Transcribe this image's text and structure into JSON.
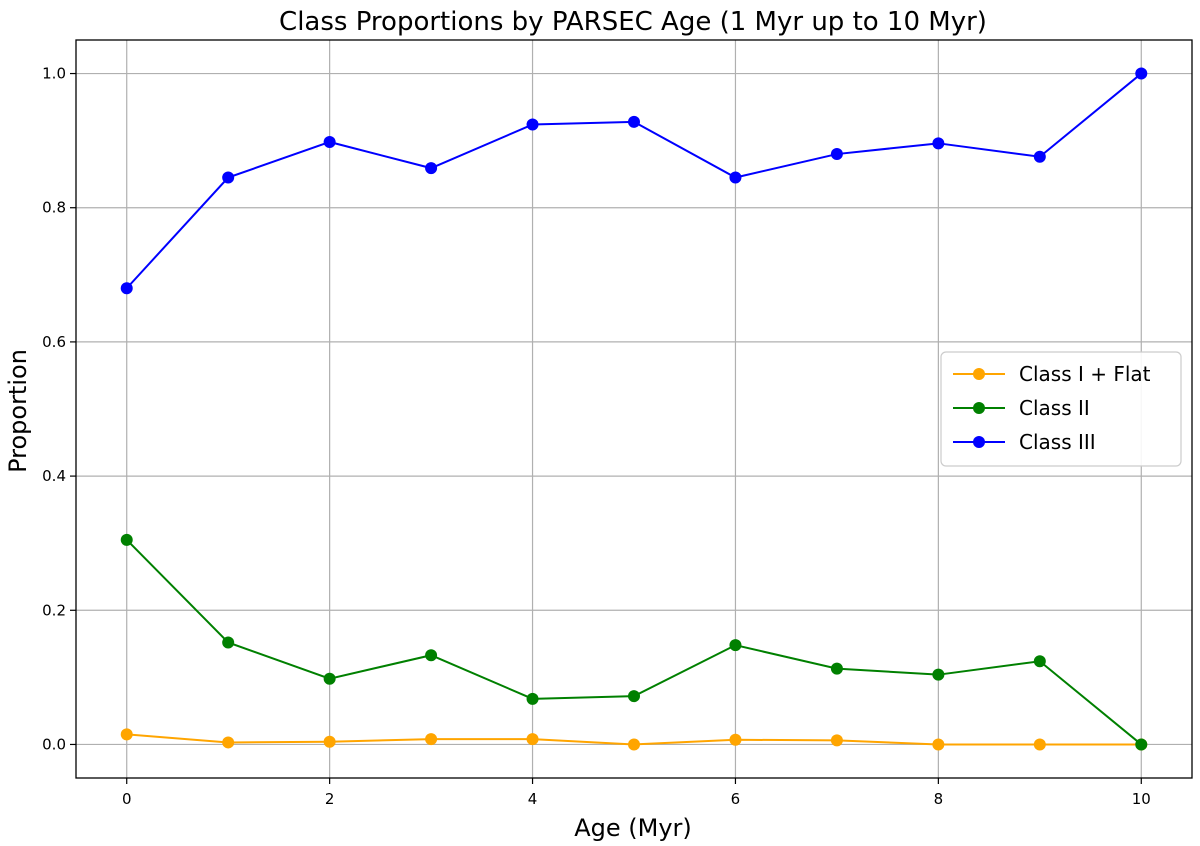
{
  "chart_data": {
    "type": "line",
    "title": "Class Proportions by PARSEC Age (1 Myr up to 10 Myr)",
    "xlabel": "Age (Myr)",
    "ylabel": "Proportion",
    "xlim": [
      -0.5,
      10.5
    ],
    "ylim": [
      -0.05,
      1.05
    ],
    "xticks": [
      0,
      2,
      4,
      6,
      8,
      10
    ],
    "xtick_labels": [
      "0",
      "2",
      "4",
      "6",
      "8",
      "10"
    ],
    "yticks": [
      0.0,
      0.2,
      0.4,
      0.6,
      0.8,
      1.0
    ],
    "ytick_labels": [
      "0.0",
      "0.2",
      "0.4",
      "0.6",
      "0.8",
      "1.0"
    ],
    "grid": true,
    "legend_position": "center-right",
    "x": [
      0,
      1,
      2,
      3,
      4,
      5,
      6,
      7,
      8,
      9,
      10
    ],
    "series": [
      {
        "name": "Class I + Flat",
        "color": "#FFA500",
        "values": [
          0.015,
          0.003,
          0.004,
          0.008,
          0.008,
          0.0,
          0.007,
          0.006,
          0.0,
          0.0,
          0.0
        ]
      },
      {
        "name": "Class II",
        "color": "#008000",
        "values": [
          0.305,
          0.152,
          0.098,
          0.133,
          0.068,
          0.072,
          0.148,
          0.113,
          0.104,
          0.124,
          0.0
        ]
      },
      {
        "name": "Class III",
        "color": "#0000FF",
        "values": [
          0.68,
          0.845,
          0.898,
          0.859,
          0.924,
          0.928,
          0.845,
          0.88,
          0.896,
          0.876,
          1.0
        ]
      }
    ]
  }
}
